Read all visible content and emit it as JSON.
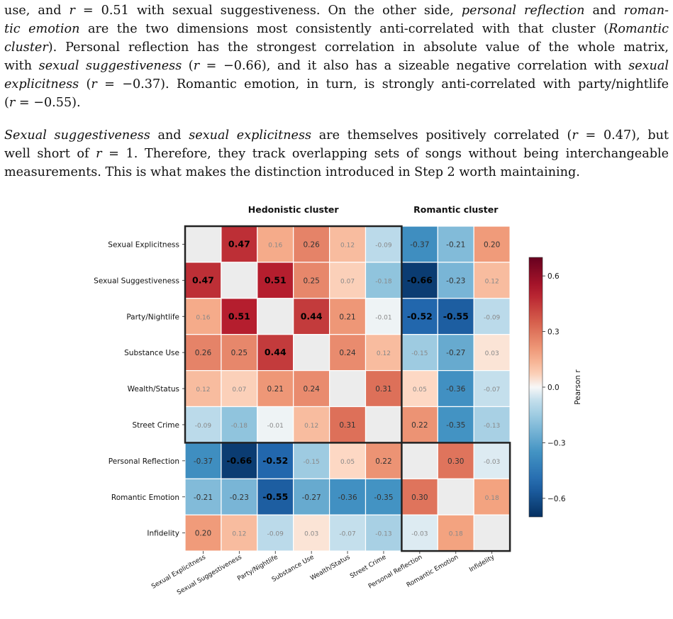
{
  "paragraph1_lines": [
    [
      {
        "t": "use, and "
      },
      {
        "t": "r",
        "i": true
      },
      {
        "t": " = 0.51 with sexual suggestiveness. On the other side, "
      },
      {
        "t": "personal reflection",
        "i": true
      },
      {
        "t": " and "
      },
      {
        "t": "roman-",
        "i": true
      }
    ],
    [
      {
        "t": "tic emotion",
        "i": true
      },
      {
        "t": " are the two dimensions most consistently anti-correlated with that cluster ("
      },
      {
        "t": "Romantic",
        "i": true
      }
    ],
    [
      {
        "t": "cluster",
        "i": true
      },
      {
        "t": "). Personal reflection has the strongest correlation in absolute value of the whole matrix,"
      }
    ],
    [
      {
        "t": "with "
      },
      {
        "t": "sexual suggestiveness",
        "i": true
      },
      {
        "t": " ("
      },
      {
        "t": "r",
        "i": true
      },
      {
        "t": " = −0.66), and it also has a sizeable negative correlation with "
      },
      {
        "t": "sexual",
        "i": true
      }
    ],
    [
      {
        "t": "explicitness",
        "i": true
      },
      {
        "t": " ("
      },
      {
        "t": "r",
        "i": true
      },
      {
        "t": " = −0.37). Romantic emotion, in turn, is strongly anti-correlated with party/nightlife"
      }
    ],
    [
      {
        "t": "("
      },
      {
        "t": "r",
        "i": true
      },
      {
        "t": " = −0.55)."
      }
    ]
  ],
  "paragraph2_lines": [
    [
      {
        "t": "Sexual suggestiveness",
        "i": true
      },
      {
        "t": " and "
      },
      {
        "t": "sexual explicitness",
        "i": true
      },
      {
        "t": " are themselves positively correlated ("
      },
      {
        "t": "r",
        "i": true
      },
      {
        "t": " = 0.47), but"
      }
    ],
    [
      {
        "t": "well short of "
      },
      {
        "t": "r",
        "i": true
      },
      {
        "t": " = 1. Therefore, they track overlapping sets of songs without being interchangeable"
      }
    ],
    [
      {
        "t": "measurements. This is what makes the distinction introduced in Step 2 worth maintaining."
      }
    ]
  ],
  "chart_data": {
    "type": "heatmap",
    "labels": [
      "Sexual Explicitness",
      "Sexual Suggestiveness",
      "Party/Nightlife",
      "Substance Use",
      "Wealth/Status",
      "Street Crime",
      "Personal Reflection",
      "Romantic Emotion",
      "Infidelity"
    ],
    "matrix": [
      [
        null,
        0.47,
        0.16,
        0.26,
        0.12,
        -0.09,
        -0.37,
        -0.21,
        0.2
      ],
      [
        0.47,
        null,
        0.51,
        0.25,
        0.07,
        -0.18,
        -0.66,
        -0.23,
        0.12
      ],
      [
        0.16,
        0.51,
        null,
        0.44,
        0.21,
        -0.01,
        -0.52,
        -0.55,
        -0.09
      ],
      [
        0.26,
        0.25,
        0.44,
        null,
        0.24,
        0.12,
        -0.15,
        -0.27,
        0.03
      ],
      [
        0.12,
        0.07,
        0.21,
        0.24,
        null,
        0.31,
        0.05,
        -0.36,
        -0.07
      ],
      [
        -0.09,
        -0.18,
        -0.01,
        0.12,
        0.31,
        null,
        0.22,
        -0.35,
        -0.13
      ],
      [
        -0.37,
        -0.66,
        -0.52,
        -0.15,
        0.05,
        0.22,
        null,
        0.3,
        -0.03
      ],
      [
        -0.21,
        -0.23,
        -0.55,
        -0.27,
        -0.36,
        -0.35,
        0.3,
        null,
        0.18
      ],
      [
        0.2,
        0.12,
        -0.09,
        0.03,
        -0.07,
        -0.13,
        -0.03,
        0.18,
        null
      ]
    ],
    "clusters": [
      {
        "name": "Hedonistic cluster",
        "start": 0,
        "end": 5
      },
      {
        "name": "Romantic cluster",
        "start": 6,
        "end": 8
      }
    ],
    "colorbar": {
      "label": "Pearson r",
      "vmin": -0.7,
      "vmax": 0.7,
      "ticks": [
        0.6,
        0.3,
        0.0,
        -0.3,
        -0.6
      ],
      "tick_labels": [
        "0.6",
        "0.3",
        "0.0",
        "−0.3",
        "−0.6"
      ]
    },
    "colors": {
      "diagonal": "#ececec",
      "cluster_border": "#222222",
      "strong_text": "#000000",
      "weak_text": "#888888"
    }
  }
}
